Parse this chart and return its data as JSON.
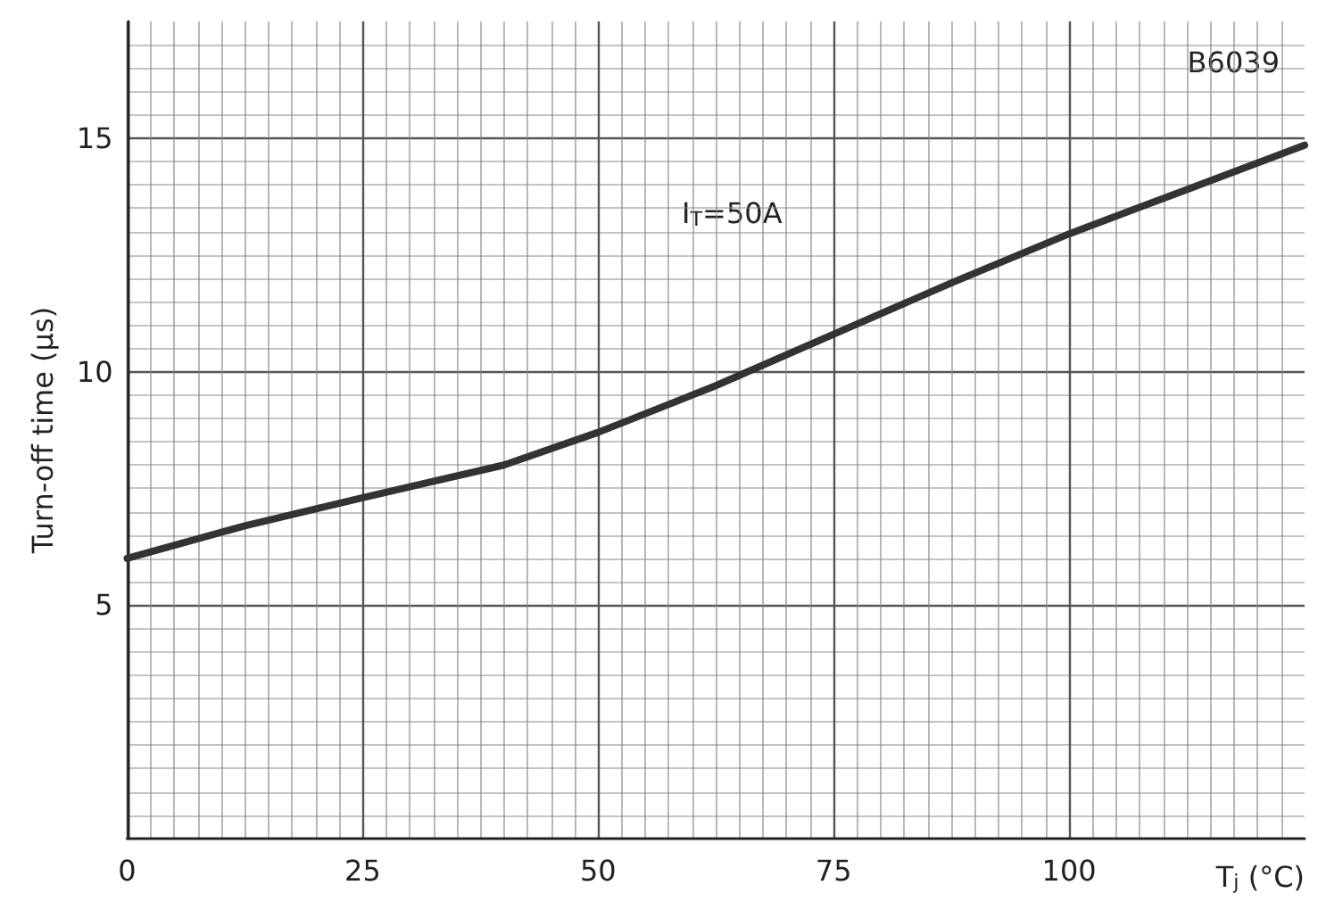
{
  "chart_data": {
    "type": "line",
    "xlabel": "T$_{j}$ (°C)",
    "ylabel": "Turn-off time (μs)",
    "annotations": [
      "B6039",
      "I$_{T}$=50A"
    ],
    "x": [
      0,
      12.5,
      25,
      40,
      50,
      62.5,
      75,
      87.5,
      100,
      112.5,
      125
    ],
    "series": [
      {
        "color": "#333333",
        "values": [
          6.0,
          6.7,
          7.3,
          8.0,
          8.7,
          9.7,
          10.8,
          11.9,
          12.95,
          13.9,
          14.85
        ]
      }
    ],
    "xlim": [
      0,
      125
    ],
    "ylim": [
      0,
      17.5
    ],
    "xticks": [
      0,
      25,
      50,
      75,
      100
    ],
    "yticks": [
      5,
      10,
      15
    ],
    "grid": true,
    "marker": "none",
    "line_style": "solid"
  }
}
